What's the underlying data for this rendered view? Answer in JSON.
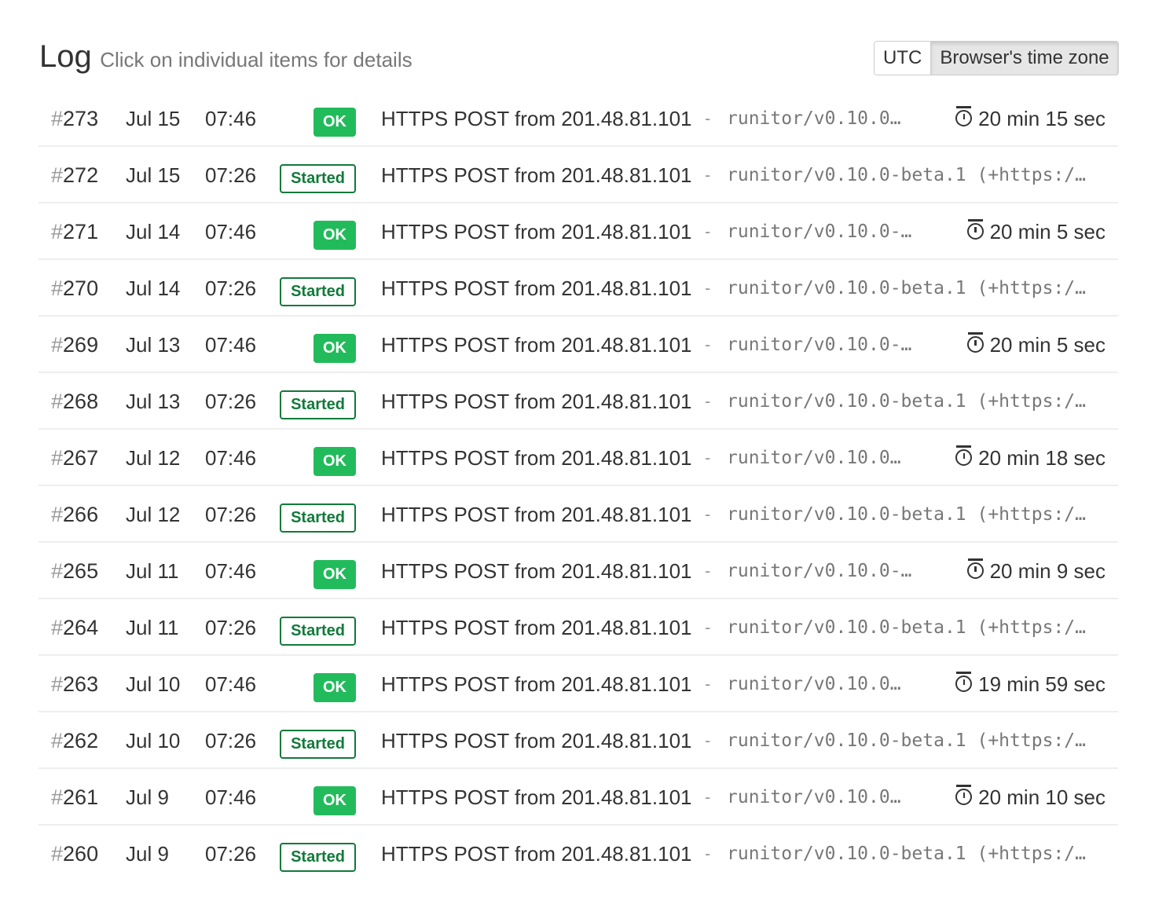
{
  "header": {
    "title": "Log",
    "subtitle": "Click on individual items for details"
  },
  "timezone": {
    "utc_label": "UTC",
    "browser_label": "Browser's time zone",
    "selected": "browser"
  },
  "colors": {
    "ok": "#22bb5b",
    "started": "#117a3a"
  },
  "rows": [
    {
      "num": "273",
      "date": "Jul 15",
      "time": "07:46",
      "status": "OK",
      "kind": "ok",
      "message": "HTTPS POST from 201.48.81.101",
      "dash": "-",
      "ua": "runitor/v0.10.0…",
      "duration": "20 min 15 sec",
      "icon": "stopwatch-icon"
    },
    {
      "num": "272",
      "date": "Jul 15",
      "time": "07:26",
      "status": "Started",
      "kind": "started",
      "message": "HTTPS POST from 201.48.81.101",
      "dash": "-",
      "ua": "runitor/v0.10.0-beta.1 (+https:/…",
      "duration": ""
    },
    {
      "num": "271",
      "date": "Jul 14",
      "time": "07:46",
      "status": "OK",
      "kind": "ok",
      "message": "HTTPS POST from 201.48.81.101",
      "dash": "-",
      "ua": "runitor/v0.10.0-…",
      "duration": "20 min 5 sec"
    },
    {
      "num": "270",
      "date": "Jul 14",
      "time": "07:26",
      "status": "Started",
      "kind": "started",
      "message": "HTTPS POST from 201.48.81.101",
      "dash": "-",
      "ua": "runitor/v0.10.0-beta.1 (+https:/…",
      "duration": ""
    },
    {
      "num": "269",
      "date": "Jul 13",
      "time": "07:46",
      "status": "OK",
      "kind": "ok",
      "message": "HTTPS POST from 201.48.81.101",
      "dash": "-",
      "ua": "runitor/v0.10.0-…",
      "duration": "20 min 5 sec"
    },
    {
      "num": "268",
      "date": "Jul 13",
      "time": "07:26",
      "status": "Started",
      "kind": "started",
      "message": "HTTPS POST from 201.48.81.101",
      "dash": "-",
      "ua": "runitor/v0.10.0-beta.1 (+https:/…",
      "duration": ""
    },
    {
      "num": "267",
      "date": "Jul 12",
      "time": "07:46",
      "status": "OK",
      "kind": "ok",
      "message": "HTTPS POST from 201.48.81.101",
      "dash": "-",
      "ua": "runitor/v0.10.0…",
      "duration": "20 min 18 sec"
    },
    {
      "num": "266",
      "date": "Jul 12",
      "time": "07:26",
      "status": "Started",
      "kind": "started",
      "message": "HTTPS POST from 201.48.81.101",
      "dash": "-",
      "ua": "runitor/v0.10.0-beta.1 (+https:/…",
      "duration": ""
    },
    {
      "num": "265",
      "date": "Jul 11",
      "time": "07:46",
      "status": "OK",
      "kind": "ok",
      "message": "HTTPS POST from 201.48.81.101",
      "dash": "-",
      "ua": "runitor/v0.10.0-…",
      "duration": "20 min 9 sec"
    },
    {
      "num": "264",
      "date": "Jul 11",
      "time": "07:26",
      "status": "Started",
      "kind": "started",
      "message": "HTTPS POST from 201.48.81.101",
      "dash": "-",
      "ua": "runitor/v0.10.0-beta.1 (+https:/…",
      "duration": ""
    },
    {
      "num": "263",
      "date": "Jul 10",
      "time": "07:46",
      "status": "OK",
      "kind": "ok",
      "message": "HTTPS POST from 201.48.81.101",
      "dash": "-",
      "ua": "runitor/v0.10.0…",
      "duration": "19 min 59 sec"
    },
    {
      "num": "262",
      "date": "Jul 10",
      "time": "07:26",
      "status": "Started",
      "kind": "started",
      "message": "HTTPS POST from 201.48.81.101",
      "dash": "-",
      "ua": "runitor/v0.10.0-beta.1 (+https:/…",
      "duration": ""
    },
    {
      "num": "261",
      "date": "Jul 9",
      "time": "07:46",
      "status": "OK",
      "kind": "ok",
      "message": "HTTPS POST from 201.48.81.101",
      "dash": "-",
      "ua": "runitor/v0.10.0…",
      "duration": "20 min 10 sec"
    },
    {
      "num": "260",
      "date": "Jul 9",
      "time": "07:26",
      "status": "Started",
      "kind": "started",
      "message": "HTTPS POST from 201.48.81.101",
      "dash": "-",
      "ua": "runitor/v0.10.0-beta.1 (+https:/…",
      "duration": ""
    }
  ]
}
